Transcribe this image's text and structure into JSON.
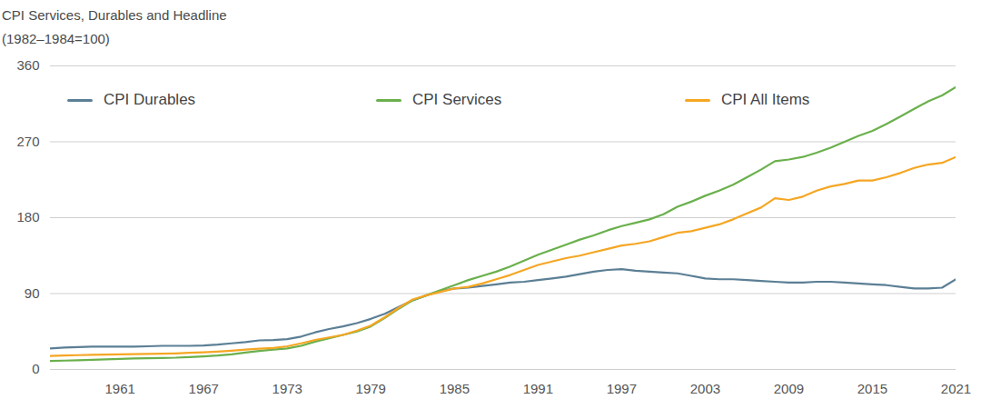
{
  "chart_data": {
    "type": "line",
    "title": "CPI Services, Durables and Headline",
    "subtitle": "(1982–1984=100)",
    "x": [
      1956,
      1957,
      1958,
      1959,
      1960,
      1961,
      1962,
      1963,
      1964,
      1965,
      1966,
      1967,
      1968,
      1969,
      1970,
      1971,
      1972,
      1973,
      1974,
      1975,
      1976,
      1977,
      1978,
      1979,
      1980,
      1981,
      1982,
      1983,
      1984,
      1985,
      1986,
      1987,
      1988,
      1989,
      1990,
      1991,
      1992,
      1993,
      1994,
      1995,
      1996,
      1997,
      1998,
      1999,
      2000,
      2001,
      2002,
      2003,
      2004,
      2005,
      2006,
      2007,
      2008,
      2009,
      2010,
      2011,
      2012,
      2013,
      2014,
      2015,
      2016,
      2017,
      2018,
      2019,
      2020,
      2021
    ],
    "series": [
      {
        "name": "CPI Durables",
        "color": "#5b7f95",
        "values": [
          25,
          26,
          26.5,
          27,
          27,
          27,
          27,
          27.5,
          28,
          28,
          28,
          28.5,
          29.5,
          31,
          32.5,
          34.5,
          35,
          36,
          39,
          44,
          48,
          51,
          55,
          60,
          66,
          74,
          82,
          88,
          93,
          96,
          97,
          99,
          101,
          103,
          104,
          106,
          108,
          110,
          113,
          116,
          118,
          119,
          117,
          116,
          115,
          114,
          111,
          108,
          107,
          107,
          106,
          105,
          104,
          103,
          103,
          104,
          104,
          103,
          102,
          101,
          100,
          98,
          96,
          96,
          97,
          107
        ]
      },
      {
        "name": "CPI Services",
        "color": "#6ab04c",
        "values": [
          10,
          10.5,
          11,
          11.5,
          12,
          12.5,
          13,
          13.3,
          13.7,
          14,
          14.7,
          15.5,
          16.5,
          18,
          20,
          22,
          23.5,
          25,
          28,
          33,
          37,
          41,
          45,
          51,
          61,
          72,
          82,
          88,
          94,
          100,
          106,
          111,
          116,
          122,
          129,
          136,
          142,
          148,
          154,
          159,
          165,
          170,
          174,
          178,
          184,
          193,
          199,
          206,
          212,
          219,
          228,
          237,
          247,
          249,
          252,
          257,
          263,
          270,
          277,
          283,
          291,
          300,
          309,
          318,
          325,
          335
        ]
      },
      {
        "name": "CPI All Items",
        "color": "#f5a623",
        "values": [
          16,
          16.5,
          17,
          17.3,
          17.6,
          18,
          18.2,
          18.5,
          18.8,
          19.1,
          19.7,
          20.3,
          21.2,
          22.3,
          23.6,
          24.7,
          25.5,
          27.5,
          31,
          35,
          38,
          41,
          46,
          52,
          62,
          73,
          83,
          88,
          92,
          96,
          98,
          102,
          107,
          112,
          118,
          124,
          128,
          132,
          135,
          139,
          143,
          147,
          149,
          152,
          157,
          162,
          164,
          168,
          172,
          178,
          185,
          192,
          203,
          201,
          205,
          212,
          217,
          220,
          224,
          224,
          228,
          233,
          239,
          243,
          245,
          252
        ]
      }
    ],
    "xlim": [
      1956,
      2021
    ],
    "ylim": [
      0,
      360
    ],
    "xticks": [
      1961,
      1967,
      1973,
      1979,
      1985,
      1991,
      1997,
      2003,
      2009,
      2015,
      2021
    ],
    "yticks": [
      0,
      90,
      180,
      270,
      360
    ],
    "grid": true,
    "legend": "top-left"
  }
}
